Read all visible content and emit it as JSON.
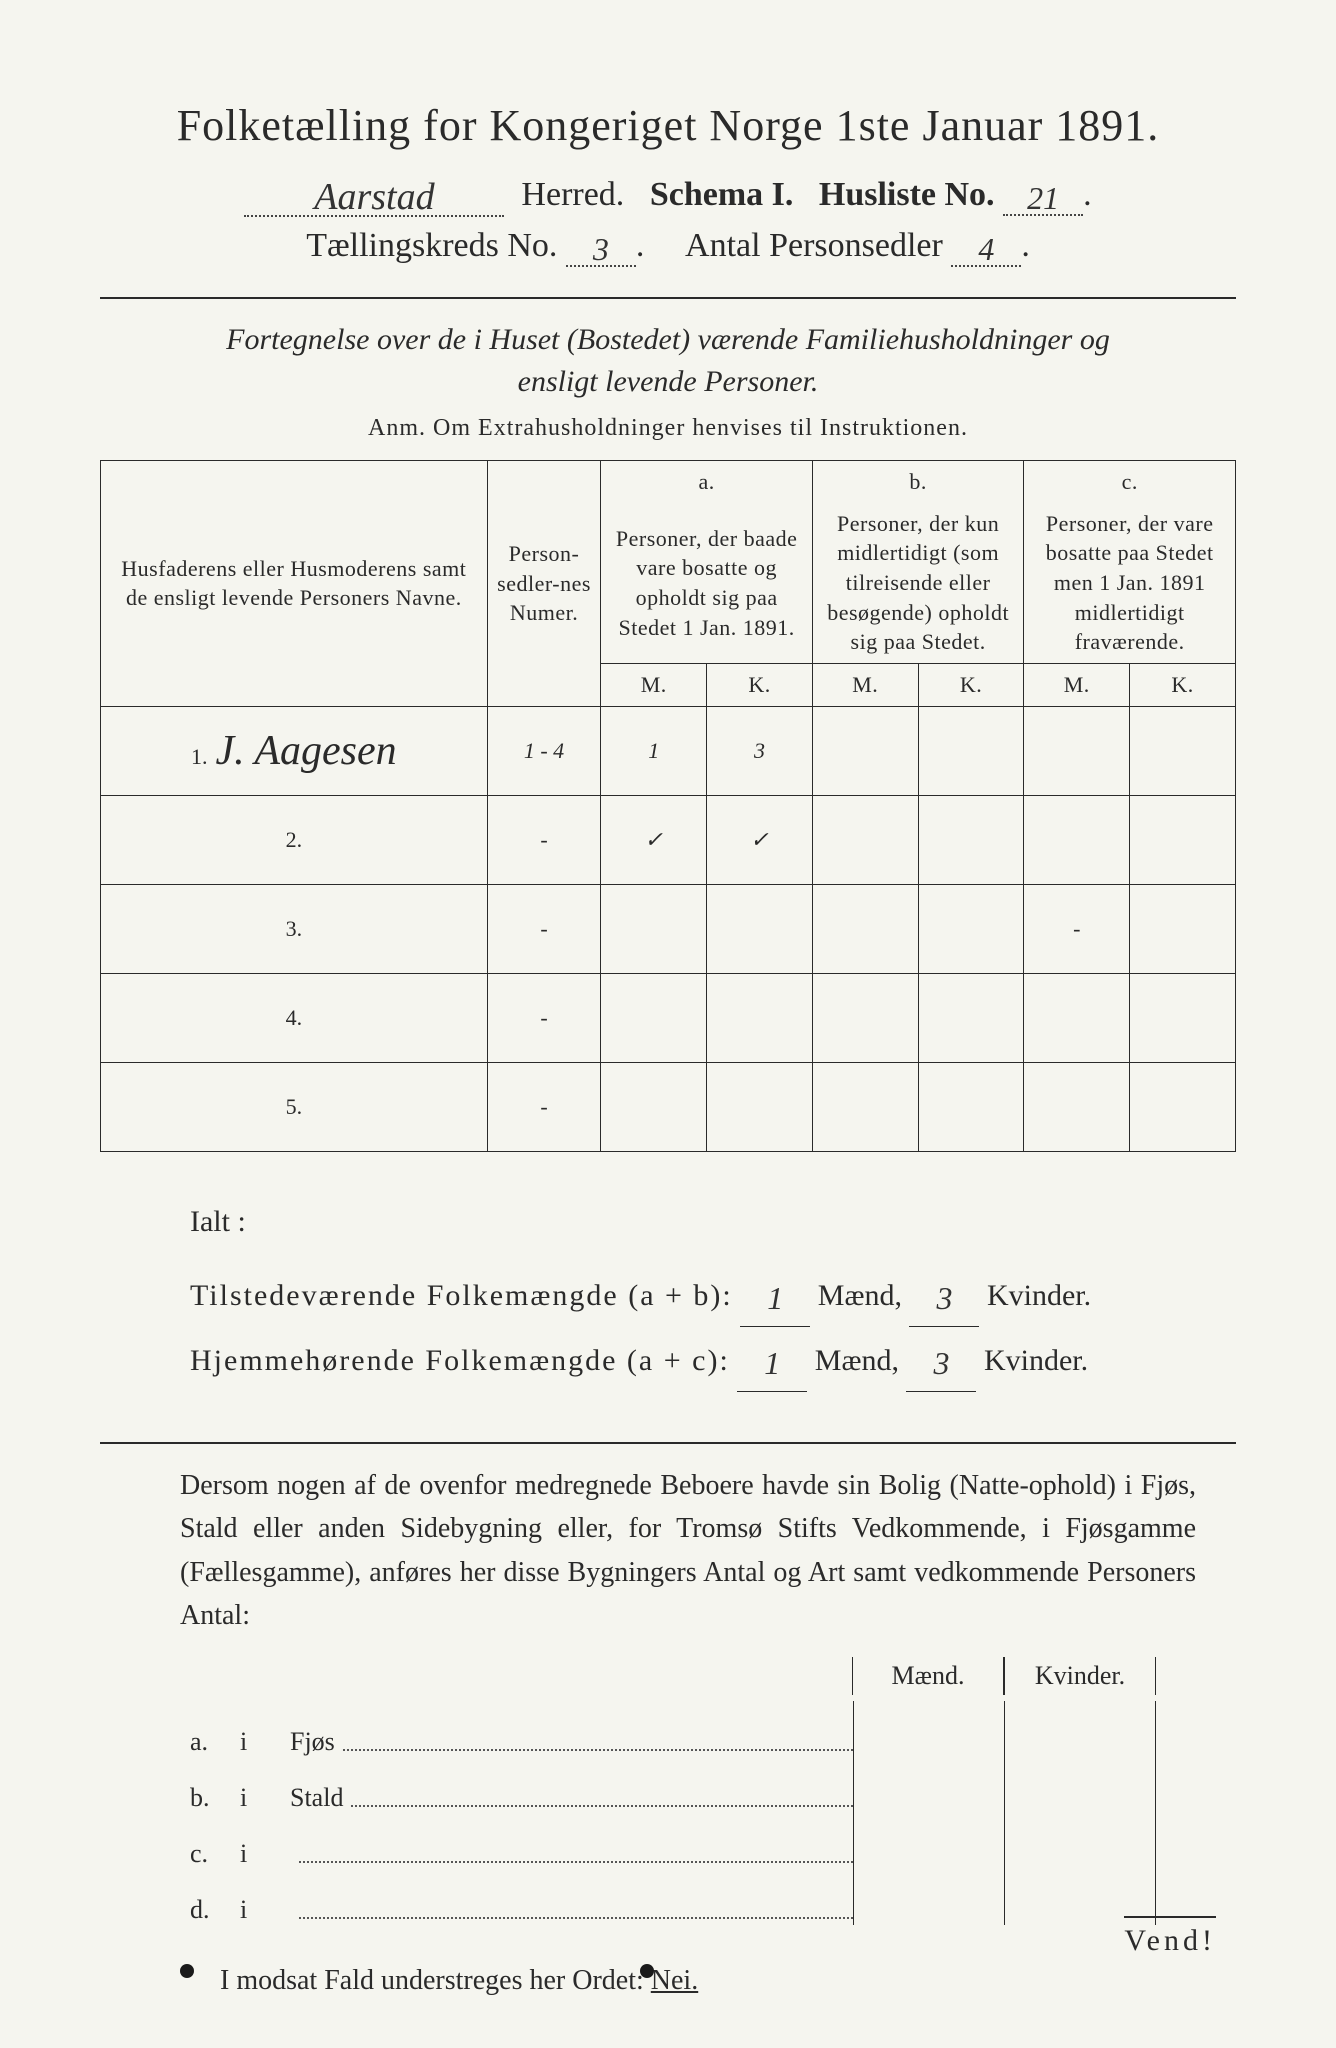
{
  "title": "Folketælling for Kongeriget Norge 1ste Januar 1891.",
  "header": {
    "herred_value": "Aarstad",
    "herred_label": "Herred.",
    "schema_label": "Schema I.",
    "husliste_label": "Husliste No.",
    "husliste_value": "21",
    "kreds_label": "Tællingskreds No.",
    "kreds_value": "3",
    "antal_label": "Antal Personsedler",
    "antal_value": "4"
  },
  "subtitle": "Fortegnelse over de i Huset (Bostedet) værende Familiehusholdninger og ensligt levende Personer.",
  "anm": "Anm.  Om Extrahusholdninger henvises til Instruktionen.",
  "table": {
    "col_names": "Husfaderens eller Husmoderens samt de ensligt levende Personers Navne.",
    "col_num": "Person-sedler-nes Numer.",
    "col_a_label": "a.",
    "col_a": "Personer, der baade vare bosatte og opholdt sig paa Stedet 1 Jan. 1891.",
    "col_b_label": "b.",
    "col_b": "Personer, der kun midlertidigt (som tilreisende eller besøgende) opholdt sig paa Stedet.",
    "col_c_label": "c.",
    "col_c": "Personer, der vare bosatte paa Stedet men 1 Jan. 1891 midlertidigt fraværende.",
    "mk_M": "M.",
    "mk_K": "K.",
    "rows": [
      {
        "n": "1.",
        "name": "J. Aagesen",
        "num": "1 - 4",
        "aM": "1",
        "aK": "3",
        "bM": "",
        "bK": "",
        "cM": "",
        "cK": ""
      },
      {
        "n": "2.",
        "name": "",
        "num": "-",
        "aM": "✓",
        "aK": "✓",
        "bM": "",
        "bK": "",
        "cM": "",
        "cK": ""
      },
      {
        "n": "3.",
        "name": "",
        "num": "-",
        "aM": "",
        "aK": "",
        "bM": "",
        "bK": "",
        "cM": "-",
        "cK": ""
      },
      {
        "n": "4.",
        "name": "",
        "num": "-",
        "aM": "",
        "aK": "",
        "bM": "",
        "bK": "",
        "cM": "",
        "cK": ""
      },
      {
        "n": "5.",
        "name": "",
        "num": "-",
        "aM": "",
        "aK": "",
        "bM": "",
        "bK": "",
        "cM": "",
        "cK": ""
      }
    ]
  },
  "totals": {
    "ialt": "Ialt :",
    "line1_lbl": "Tilstedeværende Folkemængde (a + b):",
    "line2_lbl": "Hjemmehørende Folkemængde (a + c):",
    "maend": "Mænd,",
    "kvinder": "Kvinder.",
    "l1_m": "1",
    "l1_k": "3",
    "l2_m": "1",
    "l2_k": "3"
  },
  "paragraph": "Dersom nogen af de ovenfor medregnede Beboere havde sin Bolig (Natte-ophold) i Fjøs, Stald eller anden Sidebygning eller, for Tromsø Stifts Vedkommende, i Fjøsgamme (Fællesgamme), anføres her disse Bygningers Antal og Art samt vedkommende Personers Antal:",
  "mk": {
    "m": "Mænd.",
    "k": "Kvinder."
  },
  "sidebygning": [
    {
      "l": "a.",
      "i": "i",
      "name": "Fjøs"
    },
    {
      "l": "b.",
      "i": "i",
      "name": "Stald"
    },
    {
      "l": "c.",
      "i": "i",
      "name": ""
    },
    {
      "l": "d.",
      "i": "i",
      "name": ""
    }
  ],
  "nei_line": {
    "pre": "I modsat Fald understreges her Ordet: ",
    "nei": "Nei."
  },
  "vend": "Vend!"
}
